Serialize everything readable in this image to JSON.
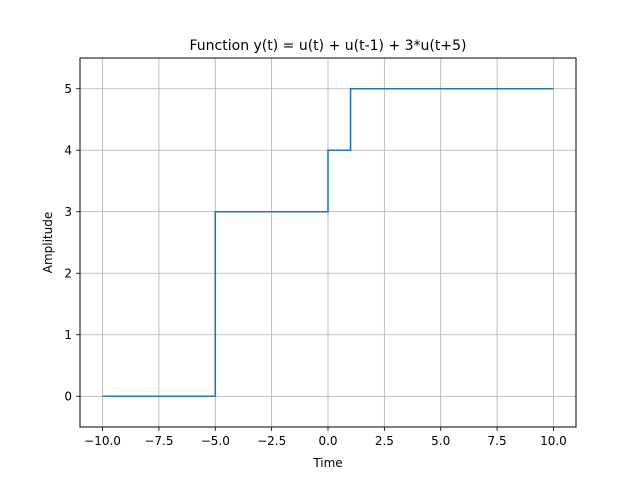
{
  "chart_data": {
    "type": "line",
    "title": "Function y(t) = u(t) + u(t-1) + 3*u(t+5)",
    "xlabel": "Time",
    "ylabel": "Amplitude",
    "xlim": [
      -11,
      11
    ],
    "ylim": [
      -0.5,
      5.5
    ],
    "x_ticks": [
      -10,
      -7.5,
      -5,
      -2.5,
      0,
      2.5,
      5,
      7.5,
      10
    ],
    "x_tick_labels": [
      "−10.0",
      "−7.5",
      "−5.0",
      "−2.5",
      "0.0",
      "2.5",
      "5.0",
      "7.5",
      "10.0"
    ],
    "y_ticks": [
      0,
      1,
      2,
      3,
      4,
      5
    ],
    "y_tick_labels": [
      "0",
      "1",
      "2",
      "3",
      "4",
      "5"
    ],
    "grid": true,
    "series": [
      {
        "color": "#1f77b4",
        "x": [
          -10,
          -5,
          -5,
          0,
          0,
          1,
          1,
          10
        ],
        "y": [
          0,
          0,
          3,
          3,
          4,
          4,
          5,
          5
        ]
      }
    ]
  }
}
